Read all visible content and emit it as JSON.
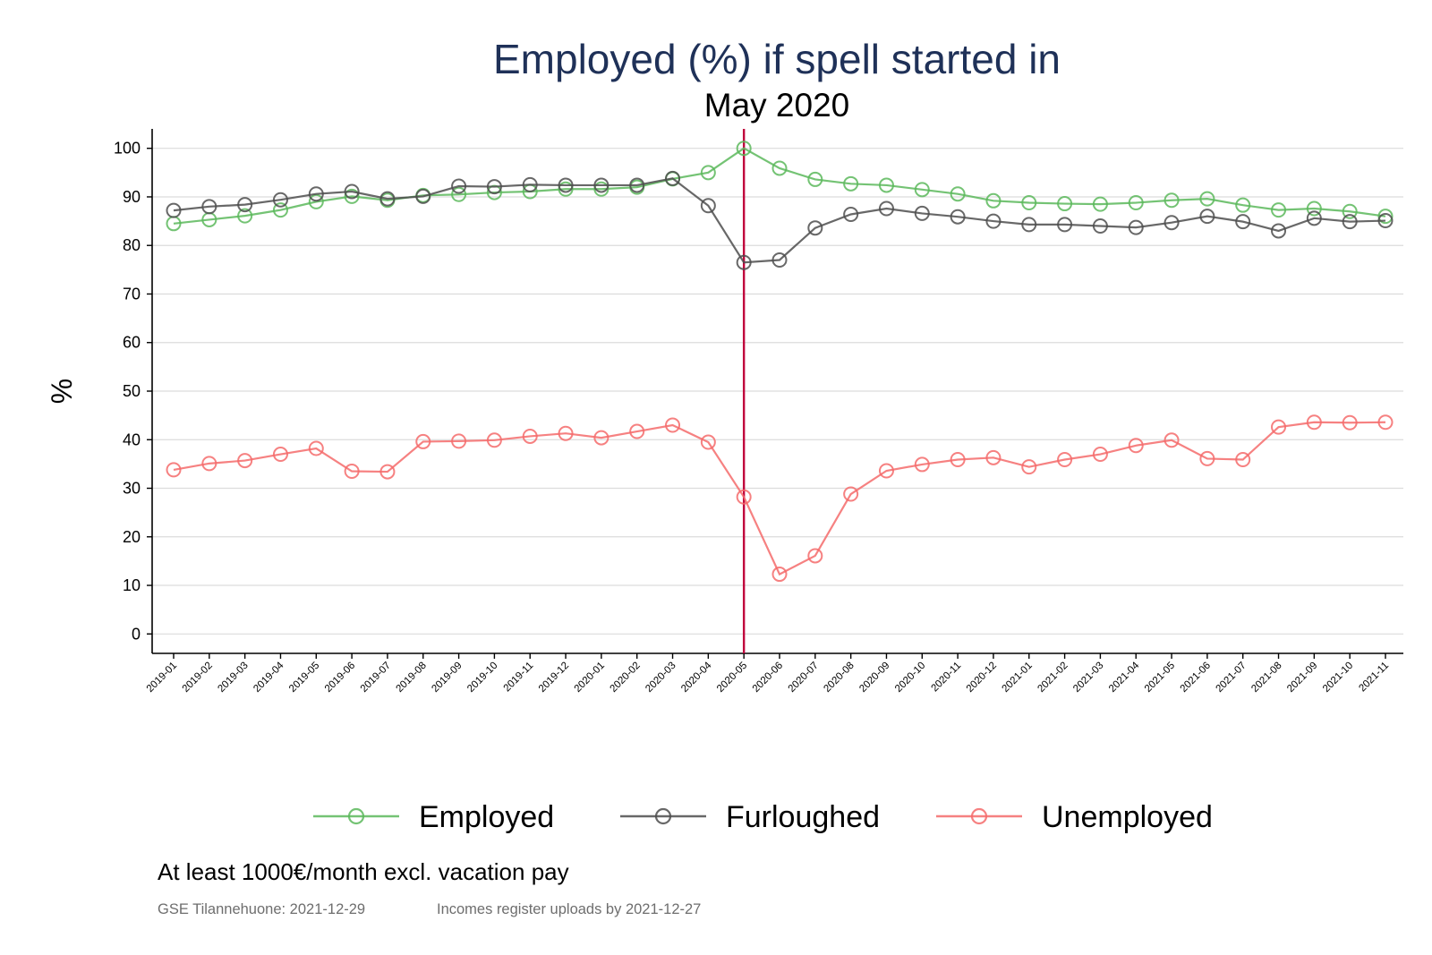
{
  "chart_data": {
    "type": "line",
    "title": "Employed (%) if spell started in",
    "subtitle": "May 2020",
    "ylabel": "%",
    "xlabel": "",
    "ylim": [
      -4,
      104
    ],
    "yticks": [
      0,
      10,
      20,
      30,
      40,
      50,
      60,
      70,
      80,
      90,
      100
    ],
    "grid": true,
    "legend_position": "bottom",
    "reference_line": {
      "x": "2020-05",
      "color": "#c0003c"
    },
    "categories": [
      "2019-01",
      "2019-02",
      "2019-03",
      "2019-04",
      "2019-05",
      "2019-06",
      "2019-07",
      "2019-08",
      "2019-09",
      "2019-10",
      "2019-11",
      "2019-12",
      "2020-01",
      "2020-02",
      "2020-03",
      "2020-04",
      "2020-05",
      "2020-06",
      "2020-07",
      "2020-08",
      "2020-09",
      "2020-10",
      "2020-11",
      "2020-12",
      "2021-01",
      "2021-02",
      "2021-03",
      "2021-04",
      "2021-05",
      "2021-06",
      "2021-07",
      "2021-08",
      "2021-09",
      "2021-10",
      "2021-11"
    ],
    "series": [
      {
        "name": "Employed",
        "color": "#5cb85c",
        "values": [
          84.5,
          85.3,
          86.1,
          87.3,
          89.0,
          90.1,
          89.3,
          90.3,
          90.5,
          90.9,
          91.1,
          91.6,
          91.6,
          92.0,
          93.7,
          95.0,
          100.0,
          95.9,
          93.6,
          92.7,
          92.4,
          91.5,
          90.6,
          89.2,
          88.8,
          88.6,
          88.5,
          88.8,
          89.3,
          89.6,
          88.3,
          87.3,
          87.6,
          87.0,
          86.0
        ]
      },
      {
        "name": "Furloughed",
        "color": "#4d4d4d",
        "values": [
          87.2,
          88.0,
          88.4,
          89.4,
          90.6,
          91.1,
          89.6,
          90.1,
          92.2,
          92.1,
          92.5,
          92.4,
          92.4,
          92.4,
          93.8,
          88.2,
          76.5,
          77.0,
          83.6,
          86.4,
          87.6,
          86.6,
          85.9,
          85.0,
          84.3,
          84.3,
          84.0,
          83.7,
          84.7,
          86.0,
          84.9,
          83.0,
          85.6,
          84.9,
          85.1
        ]
      },
      {
        "name": "Unemployed",
        "color": "#f46b6b",
        "values": [
          33.8,
          35.1,
          35.7,
          37.0,
          38.2,
          33.5,
          33.4,
          39.6,
          39.7,
          39.9,
          40.7,
          41.3,
          40.4,
          41.7,
          43.0,
          39.5,
          28.2,
          12.3,
          16.1,
          28.8,
          33.6,
          34.9,
          35.9,
          36.3,
          34.4,
          35.9,
          37.0,
          38.8,
          39.9,
          36.1,
          35.9,
          42.6,
          43.6,
          43.5,
          43.6
        ]
      }
    ]
  },
  "footnote": "At least 1000€/month excl. vacation pay",
  "caption_left": "GSE Tilannehuone: 2021-12-29",
  "caption_right": "Incomes register uploads by 2021-12-27"
}
